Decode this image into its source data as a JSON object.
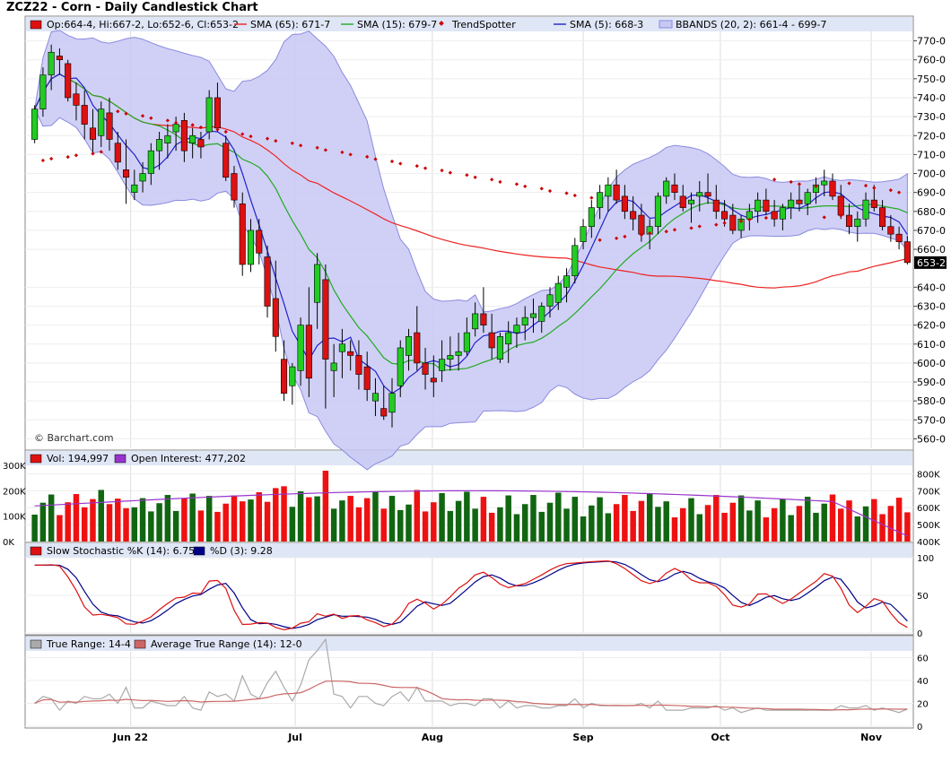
{
  "title": "ZCZ22 - Corn - Daily Candlestick Chart",
  "watermark": "© Barchart.com",
  "colors": {
    "up": "#22cc22",
    "down": "#dd1111",
    "sma65": "#ee2222",
    "sma15": "#22aa22",
    "sma5": "#2222cc",
    "trend": "#cc0000",
    "bband_fill": "#c8c8f4",
    "bband_line": "#8a8ae0",
    "vol_up": "#116611",
    "vol_down": "#ee1111",
    "oi": "#9933cc",
    "legend_bg": "#dfe6f6",
    "stoch_k": "#dd1111",
    "stoch_d": "#000088",
    "tr": "#aaaaaa",
    "atr": "#cc6666"
  },
  "legends": {
    "price": [
      "Op:664-4, Hi:667-2, Lo:652-6, Cl:653-2",
      "SMA (65): 671-7",
      "SMA (15): 679-7",
      "TrendSpotter",
      "SMA (5): 668-3",
      "BBANDS (20, 2): 661-4 - 699-7"
    ],
    "volume": [
      "Vol: 194,997",
      "Open Interest: 477,202"
    ],
    "stoch": [
      "Slow Stochastic %K (14): 6.75",
      "%D (3): 9.28"
    ],
    "tr": [
      "True Range: 14-4",
      "Average True Range (14): 12-0"
    ]
  },
  "last_price_label": "653-2",
  "x_labels": [
    {
      "label": "Jun 22",
      "i": 7
    },
    {
      "label": "Jul",
      "i": 19
    },
    {
      "label": "Aug",
      "i": 29
    },
    {
      "label": "Sep",
      "i": 40
    },
    {
      "label": "Oct",
      "i": 50
    },
    {
      "label": "Nov",
      "i": 61
    }
  ],
  "chart_data": [
    {
      "type": "candlestick",
      "title": "ZCZ22 - Corn - Daily Candlestick Chart",
      "ylim": [
        555,
        775
      ],
      "yticks": [
        {
          "v": 560,
          "label": "560-0"
        },
        {
          "v": 570,
          "label": "570-0"
        },
        {
          "v": 580,
          "label": "580-0"
        },
        {
          "v": 590,
          "label": "590-0"
        },
        {
          "v": 600,
          "label": "600-0"
        },
        {
          "v": 610,
          "label": "610-0"
        },
        {
          "v": 620,
          "label": "620-0"
        },
        {
          "v": 630,
          "label": "630-0"
        },
        {
          "v": 640,
          "label": "640-0"
        },
        {
          "v": 660,
          "label": "660-0"
        },
        {
          "v": 670,
          "label": "670-0"
        },
        {
          "v": 680,
          "label": "680-0"
        },
        {
          "v": 690,
          "label": "690-0"
        },
        {
          "v": 700,
          "label": "700-0"
        },
        {
          "v": 710,
          "label": "710-0"
        },
        {
          "v": 720,
          "label": "720-0"
        },
        {
          "v": 730,
          "label": "730-0"
        },
        {
          "v": 740,
          "label": "740-0"
        },
        {
          "v": 750,
          "label": "750-0"
        },
        {
          "v": 760,
          "label": "760-0"
        },
        {
          "v": 770,
          "label": "770-0"
        }
      ],
      "x_label_spacing_note": "daily bars, one per trading day",
      "ohlc": [
        [
          718,
          736,
          716,
          734
        ],
        [
          734,
          756,
          730,
          752
        ],
        [
          752,
          768,
          744,
          764
        ],
        [
          762,
          766,
          752,
          760
        ],
        [
          758,
          760,
          738,
          740
        ],
        [
          742,
          748,
          728,
          736
        ],
        [
          736,
          744,
          718,
          726
        ],
        [
          724,
          734,
          710,
          718
        ],
        [
          720,
          738,
          714,
          734
        ],
        [
          732,
          740,
          712,
          718
        ],
        [
          716,
          722,
          702,
          706
        ],
        [
          702,
          718,
          684,
          698
        ],
        [
          690,
          702,
          686,
          694
        ],
        [
          696,
          706,
          690,
          700
        ],
        [
          700,
          716,
          694,
          712
        ],
        [
          712,
          722,
          702,
          718
        ],
        [
          716,
          726,
          708,
          720
        ],
        [
          722,
          730,
          712,
          726
        ],
        [
          728,
          732,
          706,
          712
        ],
        [
          716,
          724,
          708,
          720
        ],
        [
          718,
          722,
          708,
          714
        ],
        [
          722,
          744,
          718,
          740
        ],
        [
          740,
          748,
          722,
          724
        ],
        [
          716,
          720,
          696,
          698
        ],
        [
          700,
          704,
          682,
          686
        ],
        [
          684,
          690,
          646,
          652
        ],
        [
          652,
          676,
          648,
          670
        ],
        [
          670,
          676,
          652,
          658
        ],
        [
          656,
          662,
          624,
          630
        ],
        [
          634,
          654,
          606,
          614
        ],
        [
          602,
          612,
          580,
          584
        ],
        [
          588,
          600,
          578,
          598
        ],
        [
          596,
          624,
          588,
          620
        ],
        [
          620,
          640,
          582,
          592
        ],
        [
          632,
          658,
          618,
          652
        ],
        [
          644,
          652,
          576,
          602
        ],
        [
          596,
          610,
          582,
          600
        ],
        [
          606,
          618,
          592,
          610
        ],
        [
          606,
          612,
          596,
          604
        ],
        [
          604,
          612,
          586,
          594
        ],
        [
          598,
          606,
          580,
          586
        ],
        [
          580,
          592,
          572,
          584
        ],
        [
          576,
          588,
          570,
          572
        ],
        [
          574,
          592,
          566,
          584
        ],
        [
          588,
          612,
          582,
          608
        ],
        [
          604,
          618,
          596,
          614
        ],
        [
          616,
          630,
          596,
          600
        ],
        [
          600,
          608,
          586,
          594
        ],
        [
          592,
          604,
          582,
          590
        ],
        [
          596,
          612,
          590,
          602
        ],
        [
          602,
          614,
          596,
          604
        ],
        [
          604,
          616,
          596,
          606
        ],
        [
          606,
          624,
          604,
          616
        ],
        [
          618,
          632,
          614,
          626
        ],
        [
          626,
          640,
          616,
          620
        ],
        [
          616,
          626,
          602,
          608
        ],
        [
          602,
          616,
          600,
          614
        ],
        [
          610,
          622,
          600,
          616
        ],
        [
          616,
          624,
          608,
          620
        ],
        [
          620,
          630,
          612,
          624
        ],
        [
          624,
          634,
          616,
          626
        ],
        [
          622,
          632,
          616,
          630
        ],
        [
          630,
          640,
          624,
          636
        ],
        [
          632,
          646,
          628,
          642
        ],
        [
          640,
          650,
          632,
          646
        ],
        [
          646,
          666,
          642,
          662
        ],
        [
          664,
          676,
          660,
          672
        ],
        [
          672,
          686,
          666,
          682
        ],
        [
          682,
          694,
          676,
          690
        ],
        [
          688,
          698,
          680,
          694
        ],
        [
          694,
          702,
          684,
          686
        ],
        [
          688,
          694,
          676,
          680
        ],
        [
          680,
          688,
          670,
          676
        ],
        [
          678,
          684,
          664,
          668
        ],
        [
          668,
          676,
          660,
          672
        ],
        [
          672,
          690,
          668,
          688
        ],
        [
          688,
          698,
          684,
          696
        ],
        [
          694,
          700,
          686,
          690
        ],
        [
          688,
          694,
          680,
          682
        ],
        [
          684,
          690,
          674,
          686
        ],
        [
          688,
          696,
          680,
          690
        ],
        [
          690,
          700,
          684,
          688
        ],
        [
          686,
          694,
          676,
          680
        ],
        [
          680,
          686,
          672,
          676
        ],
        [
          678,
          684,
          668,
          670
        ],
        [
          670,
          678,
          666,
          676
        ],
        [
          676,
          684,
          670,
          680
        ],
        [
          680,
          690,
          674,
          686
        ],
        [
          686,
          692,
          678,
          680
        ],
        [
          680,
          686,
          672,
          676
        ],
        [
          676,
          684,
          670,
          682
        ],
        [
          682,
          690,
          676,
          686
        ],
        [
          686,
          694,
          680,
          684
        ],
        [
          684,
          692,
          678,
          690
        ],
        [
          690,
          698,
          684,
          694
        ],
        [
          694,
          702,
          688,
          696
        ],
        [
          696,
          700,
          686,
          688
        ],
        [
          688,
          694,
          676,
          678
        ],
        [
          678,
          684,
          668,
          672
        ],
        [
          672,
          680,
          664,
          676
        ],
        [
          676,
          690,
          672,
          686
        ],
        [
          686,
          694,
          680,
          682
        ],
        [
          682,
          686,
          670,
          672
        ],
        [
          672,
          678,
          664,
          668
        ],
        [
          668,
          672,
          660,
          664
        ],
        [
          664,
          667,
          652,
          653
        ]
      ]
    }
  ]
}
